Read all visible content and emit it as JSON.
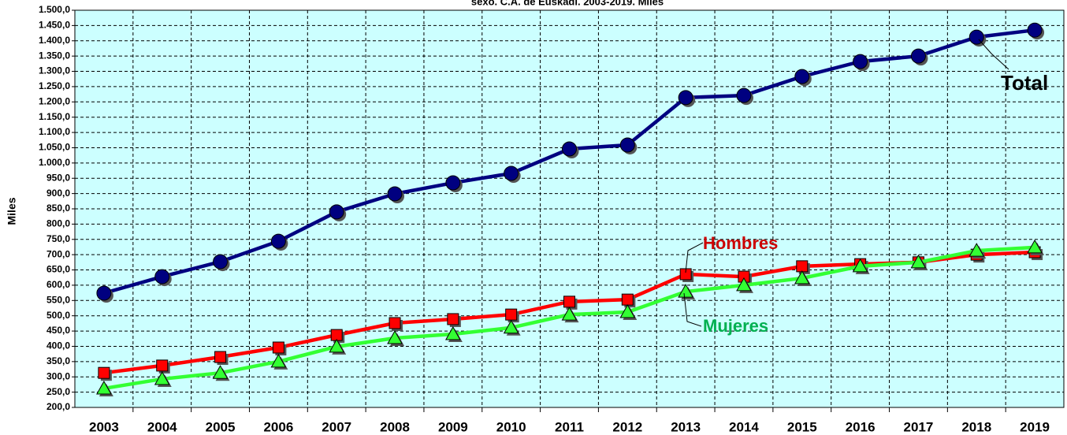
{
  "chart_data": {
    "type": "line",
    "title": "sexo. C.A. de Euskadi. 2003-2019. Miles",
    "ylabel": "Miles",
    "categories": [
      "2003",
      "2004",
      "2005",
      "2006",
      "2007",
      "2008",
      "2009",
      "2010",
      "2011",
      "2012",
      "2013",
      "2014",
      "2015",
      "2016",
      "2017",
      "2018",
      "2019"
    ],
    "series": [
      {
        "name": "Total",
        "color": "#000080",
        "label_color": "#000000",
        "marker": "circle",
        "values": [
          574,
          628,
          677,
          744,
          840,
          899,
          935,
          966,
          1046,
          1059,
          1214,
          1221,
          1283,
          1332,
          1350,
          1412,
          1435
        ]
      },
      {
        "name": "Hombres",
        "color": "#ff0000",
        "label_color": "#cc0000",
        "marker": "square",
        "values": [
          313,
          337,
          365,
          396,
          437,
          476,
          489,
          504,
          546,
          553,
          636,
          628,
          662,
          669,
          675,
          700,
          708
        ]
      },
      {
        "name": "Mujeres",
        "color": "#33ff33",
        "label_color": "#00b050",
        "marker": "triangle",
        "values": [
          262,
          293,
          313,
          350,
          399,
          427,
          440,
          461,
          504,
          512,
          579,
          600,
          623,
          662,
          675,
          713,
          724
        ]
      }
    ],
    "ylim": [
      200,
      1500
    ],
    "yticks": [
      {
        "value": 200,
        "label": "200,0"
      },
      {
        "value": 250,
        "label": "250,0"
      },
      {
        "value": 300,
        "label": "300,0"
      },
      {
        "value": 350,
        "label": "350,0"
      },
      {
        "value": 400,
        "label": "400,0"
      },
      {
        "value": 450,
        "label": "450,0"
      },
      {
        "value": 500,
        "label": "500,0"
      },
      {
        "value": 550,
        "label": "550,0"
      },
      {
        "value": 600,
        "label": "600,0"
      },
      {
        "value": 650,
        "label": "650,0"
      },
      {
        "value": 700,
        "label": "700,0"
      },
      {
        "value": 750,
        "label": "750,0"
      },
      {
        "value": 800,
        "label": "800,0"
      },
      {
        "value": 850,
        "label": "850,0"
      },
      {
        "value": 900,
        "label": "900,0"
      },
      {
        "value": 950,
        "label": "950,0"
      },
      {
        "value": 1000,
        "label": "1.000,0"
      },
      {
        "value": 1050,
        "label": "1.050,0"
      },
      {
        "value": 1100,
        "label": "1.100,0"
      },
      {
        "value": 1150,
        "label": "1.150,0"
      },
      {
        "value": 1200,
        "label": "1.200,0"
      },
      {
        "value": 1250,
        "label": "1.250,0"
      },
      {
        "value": 1300,
        "label": "1.300,0"
      },
      {
        "value": 1350,
        "label": "1.350,0"
      },
      {
        "value": 1400,
        "label": "1.400,0"
      },
      {
        "value": 1450,
        "label": "1.450,0"
      },
      {
        "value": 1500,
        "label": "1.500,0"
      }
    ],
    "grid": true,
    "background": "#ccffff"
  }
}
